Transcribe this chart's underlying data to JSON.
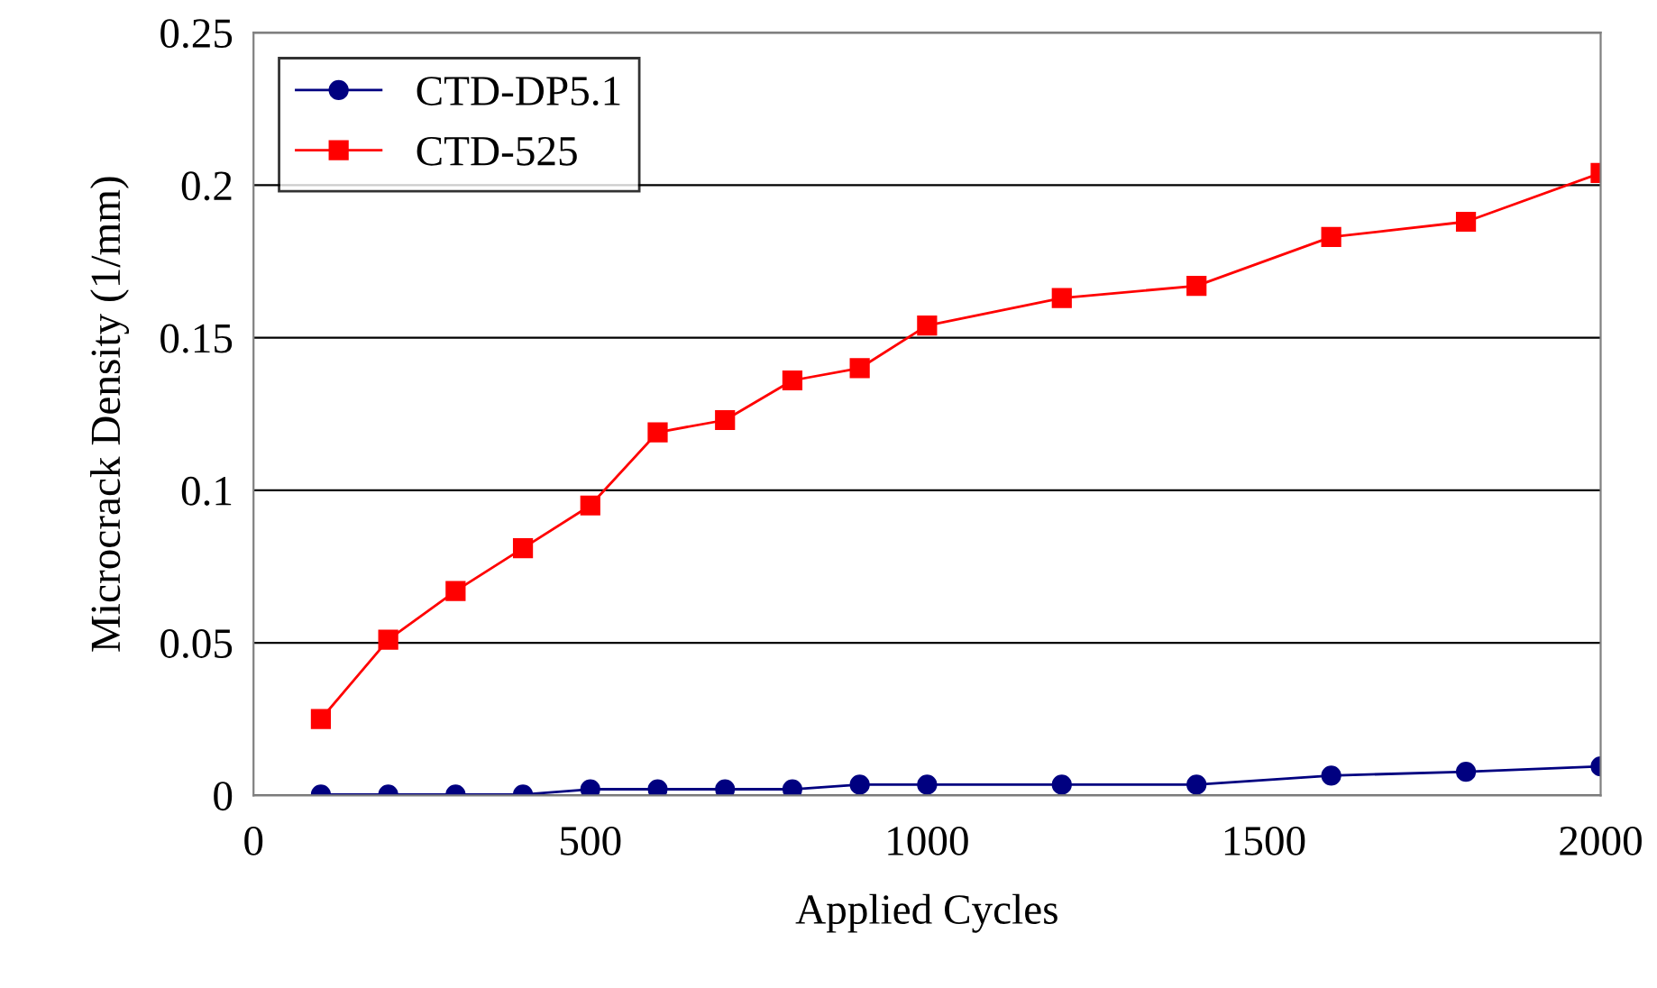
{
  "chart_data": {
    "type": "line",
    "xlabel": "Applied Cycles",
    "ylabel": "Microcrack Density (1/mm)",
    "x": [
      100,
      200,
      300,
      400,
      500,
      600,
      700,
      800,
      900,
      1000,
      1200,
      1400,
      1600,
      1800,
      2000
    ],
    "series": [
      {
        "name": "CTD-DP5.1",
        "color": "#000080",
        "marker": "circle",
        "values": [
          0.0003,
          0.0003,
          0.0003,
          0.0003,
          0.002,
          0.002,
          0.002,
          0.002,
          0.0035,
          0.0035,
          0.0035,
          0.0035,
          0.0065,
          0.0077,
          0.0095
        ]
      },
      {
        "name": "CTD-525",
        "color": "#ff0000",
        "marker": "square",
        "values": [
          0.025,
          0.051,
          0.067,
          0.081,
          0.095,
          0.119,
          0.123,
          0.136,
          0.14,
          0.154,
          0.163,
          0.167,
          0.183,
          0.188,
          0.204
        ]
      }
    ],
    "xlim": [
      0,
      2000
    ],
    "xticks": [
      0,
      500,
      1000,
      1500,
      2000
    ],
    "ylim": [
      0,
      0.25
    ],
    "yticks": [
      0,
      0.05,
      0.1,
      0.15,
      0.2,
      0.25
    ],
    "grid": "y",
    "legend": "top left",
    "line_style": "solid"
  }
}
